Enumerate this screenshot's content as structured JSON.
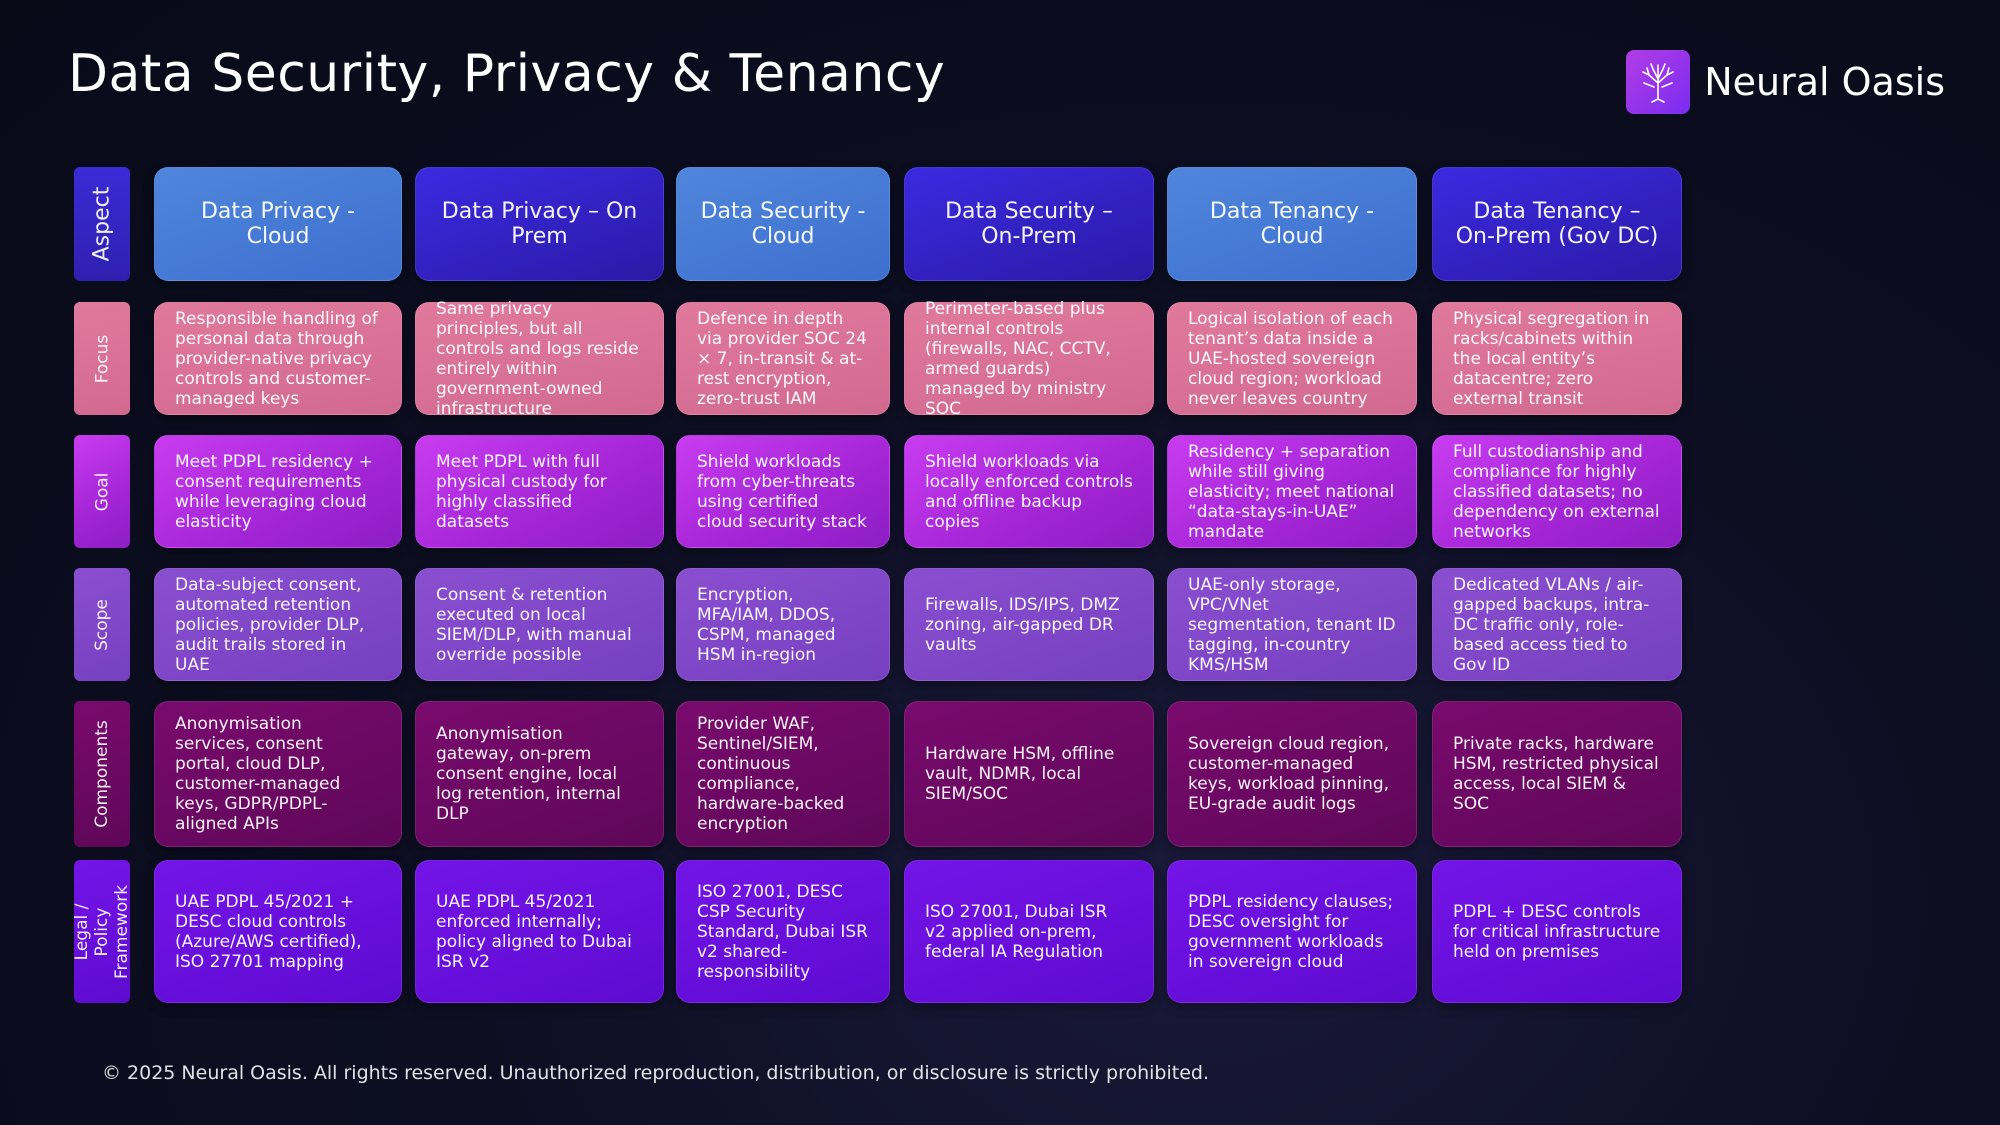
{
  "title": "Data Security, Privacy & Tenancy",
  "brand": {
    "name": "Neural Oasis",
    "logo_icon": "tree-icon",
    "accent": "#a436e8"
  },
  "columns": [
    "Data Privacy - Cloud",
    "Data Privacy – On Prem",
    "Data Security - Cloud",
    "Data Security – On-Prem",
    "Data Tenancy - Cloud",
    "Data Tenancy – On-Prem (Gov DC)"
  ],
  "row_label": "Aspect",
  "rows": [
    {
      "label": "Focus",
      "cells": [
        "Responsible handling of personal data through provider-native privacy controls and customer-managed keys",
        "Same privacy principles, but all controls and logs reside entirely within government-owned infrastructure",
        "Defence in depth via provider SOC 24 × 7, in-transit & at-rest encryption, zero-trust IAM",
        "Perimeter-based plus internal controls (firewalls, NAC, CCTV, armed guards) managed by ministry SOC",
        "Logical isolation of each tenant’s data inside a UAE-hosted sovereign cloud region; workload never leaves country",
        "Physical segregation in racks/cabinets within the local entity’s datacentre; zero external transit"
      ]
    },
    {
      "label": "Goal",
      "cells": [
        "Meet PDPL residency + consent requirements while leveraging cloud elasticity",
        "Meet PDPL with full physical custody for highly classified datasets",
        "Shield workloads from cyber-threats using certified cloud security stack",
        "Shield workloads via locally enforced controls and offline backup copies",
        "Residency + separation while still giving elasticity; meet national “data-stays-in-UAE” mandate",
        "Full custodianship and compliance for highly classified datasets; no dependency on external networks"
      ]
    },
    {
      "label": "Scope",
      "cells": [
        "Data-subject consent, automated retention policies, provider DLP, audit trails stored in UAE",
        "Consent & retention executed on local SIEM/DLP, with manual override possible",
        "Encryption, MFA/IAM, DDOS, CSPM, managed HSM in-region",
        "Firewalls, IDS/IPS, DMZ zoning, air-gapped DR vaults",
        "UAE-only storage, VPC/VNet segmentation, tenant ID tagging, in-country KMS/HSM",
        "Dedicated VLANs / air-gapped backups, intra-DC traffic only, role-based access tied to Gov ID"
      ]
    },
    {
      "label": "Components",
      "cells": [
        "Anonymisation services, consent portal, cloud DLP, customer-managed keys, GDPR/PDPL-aligned APIs",
        "Anonymisation gateway, on-prem consent engine, local log retention, internal DLP",
        "Provider WAF, Sentinel/SIEM, continuous compliance, hardware-backed encryption",
        "Hardware HSM, offline vault, NDMR, local SIEM/SOC",
        "Sovereign cloud region, customer-managed keys, workload pinning, EU-grade audit logs",
        "Private racks, hardware HSM, restricted physical access, local SIEM & SOC"
      ]
    },
    {
      "label": "Legal / Policy Framework",
      "cells": [
        "UAE PDPL 45/2021 + DESC cloud controls (Azure/AWS certified), ISO 27701 mapping",
        "UAE PDPL 45/2021 enforced internally; policy aligned to Dubai ISR v2",
        "ISO 27001, DESC CSP Security Standard, Dubai ISR v2 shared-responsibility",
        "ISO 27001, Dubai ISR v2 applied on-prem, federal IA Regulation",
        "PDPL residency clauses; DESC oversight for government workloads in sovereign cloud",
        "PDPL + DESC controls for critical infrastructure held on premises"
      ]
    }
  ],
  "footer": "© 2025 Neural Oasis. All rights reserved. Unauthorized reproduction, distribution, or disclosure is strictly prohibited."
}
